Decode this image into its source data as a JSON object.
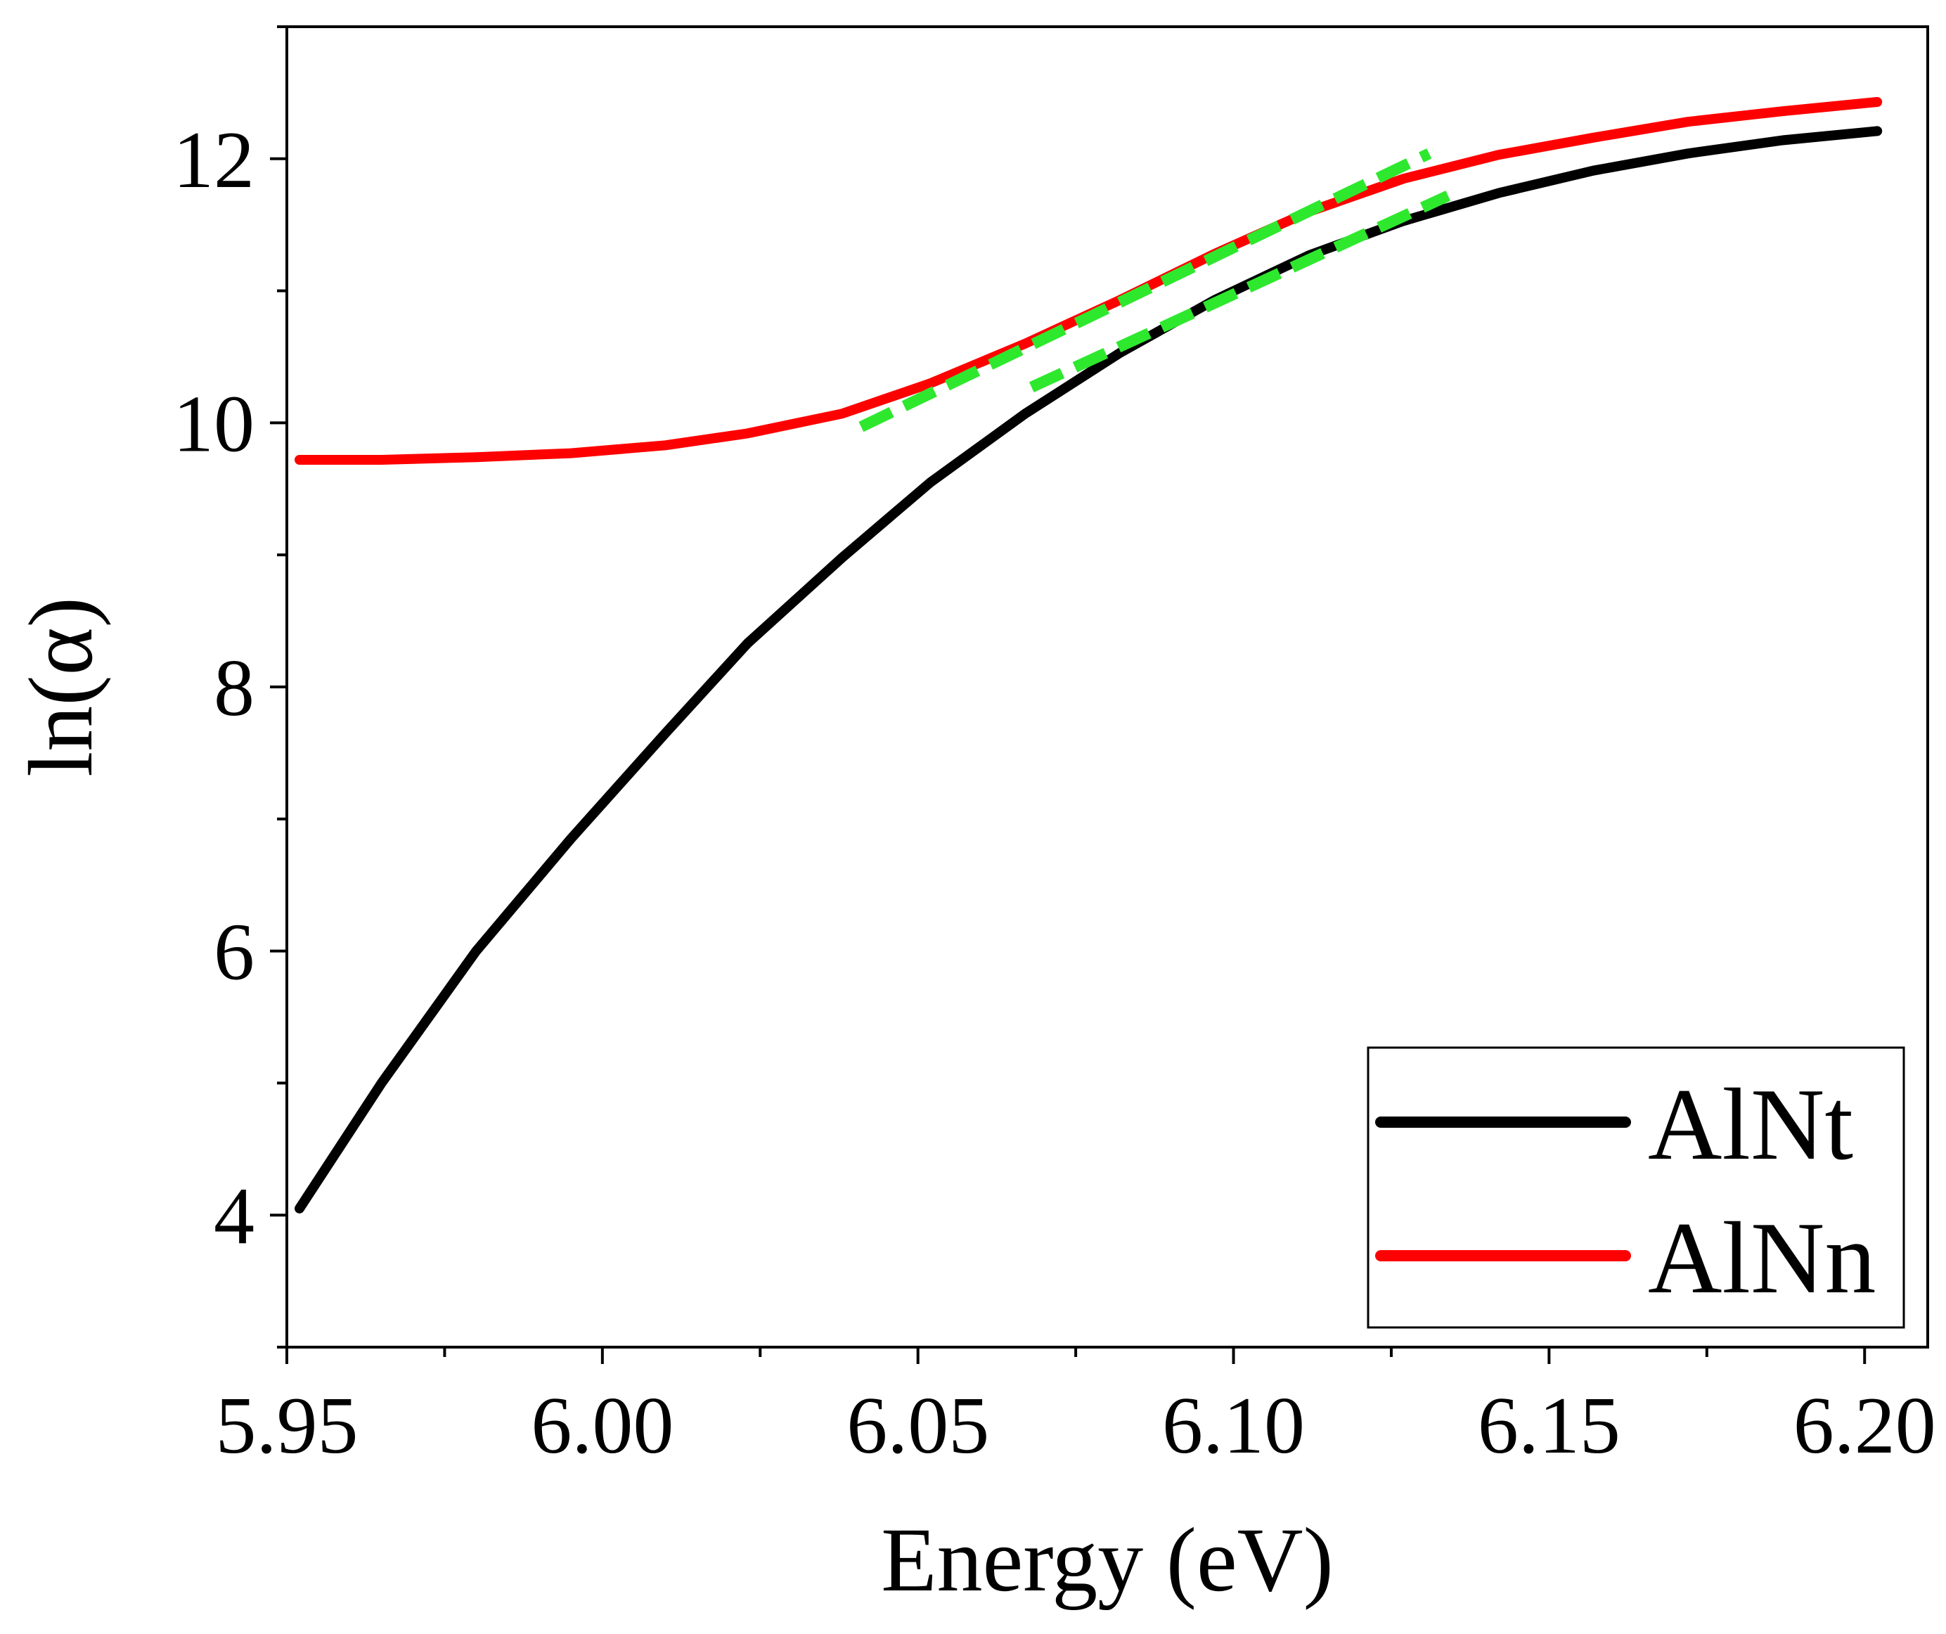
{
  "chart_data": {
    "type": "line",
    "title": "",
    "xlabel": "Energy (eV)",
    "ylabel": "ln(α)",
    "xlim": [
      5.95,
      6.21
    ],
    "ylim": [
      3,
      13
    ],
    "x_ticks": [
      5.95,
      6.0,
      6.05,
      6.1,
      6.15,
      6.2
    ],
    "x_tick_labels": [
      "5.95",
      "6.00",
      "6.05",
      "6.10",
      "6.15",
      "6.20"
    ],
    "x_minor_ticks": [
      5.975,
      6.025,
      6.075,
      6.125,
      6.175
    ],
    "y_ticks": [
      4,
      6,
      8,
      10,
      12
    ],
    "y_tick_labels": [
      "4",
      "6",
      "8",
      "10",
      "12"
    ],
    "y_minor_ticks": [
      3,
      5,
      7,
      9,
      11,
      13
    ],
    "grid": false,
    "legend_position": "bottom-right",
    "series": [
      {
        "name": "AlNt",
        "color": "#000000",
        "x": [
          5.952,
          5.965,
          5.98,
          5.995,
          6.01,
          6.023,
          6.038,
          6.052,
          6.067,
          6.082,
          6.097,
          6.112,
          6.127,
          6.142,
          6.157,
          6.172,
          6.187,
          6.202
        ],
        "y": [
          4.05,
          5.0,
          6.0,
          6.85,
          7.65,
          8.33,
          8.98,
          9.55,
          10.07,
          10.53,
          10.93,
          11.27,
          11.53,
          11.74,
          11.91,
          12.04,
          12.14,
          12.21
        ]
      },
      {
        "name": "AlNn",
        "color": "#ff0000",
        "x": [
          5.952,
          5.965,
          5.98,
          5.995,
          6.01,
          6.023,
          6.038,
          6.052,
          6.067,
          6.082,
          6.097,
          6.112,
          6.127,
          6.142,
          6.157,
          6.172,
          6.187,
          6.202
        ],
        "y": [
          9.72,
          9.72,
          9.74,
          9.77,
          9.83,
          9.92,
          10.07,
          10.3,
          10.6,
          10.93,
          11.28,
          11.6,
          11.85,
          12.03,
          12.16,
          12.28,
          12.36,
          12.43
        ]
      }
    ],
    "fit_lines": [
      {
        "color": "#2ee82e",
        "style": "dashed",
        "x": [
          6.041,
          6.131
        ],
        "y": [
          9.97,
          12.04
        ]
      },
      {
        "color": "#2ee82e",
        "style": "dashed",
        "x": [
          6.068,
          6.134
        ],
        "y": [
          10.27,
          11.72
        ]
      }
    ]
  }
}
